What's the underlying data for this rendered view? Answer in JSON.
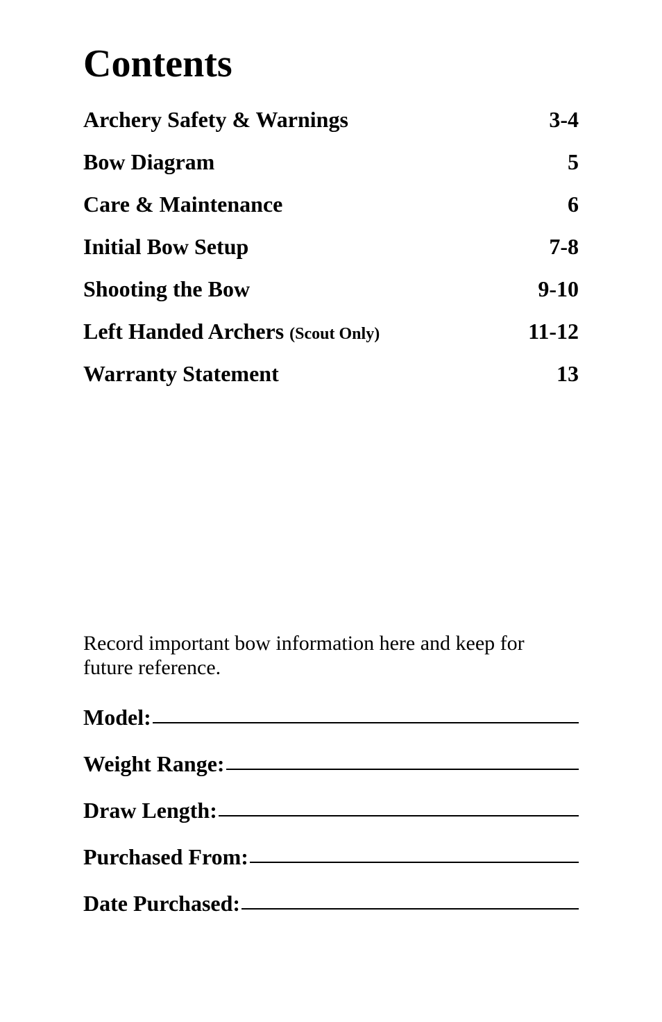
{
  "title": "Contents",
  "toc": [
    {
      "label": "Archery Safety & Warnings",
      "sub": "",
      "page": "3-4"
    },
    {
      "label": "Bow Diagram",
      "sub": "",
      "page": "5"
    },
    {
      "label": "Care & Maintenance",
      "sub": "",
      "page": "6"
    },
    {
      "label": "Initial Bow Setup",
      "sub": "",
      "page": "7-8"
    },
    {
      "label": "Shooting  the  Bow",
      "sub": "",
      "page": "9-10"
    },
    {
      "label": "Left Handed Archers ",
      "sub": "(Scout Only)",
      "page": "11-12"
    },
    {
      "label": "Warranty  Statement",
      "sub": "",
      "page": "13"
    }
  ],
  "record": {
    "intro": "Record important bow information here and keep for future reference.",
    "fields": [
      {
        "label": "Model:"
      },
      {
        "label": "Weight Range:"
      },
      {
        "label": "Draw Length:"
      },
      {
        "label": "Purchased From:"
      },
      {
        "label": "Date Purchased:"
      }
    ]
  }
}
